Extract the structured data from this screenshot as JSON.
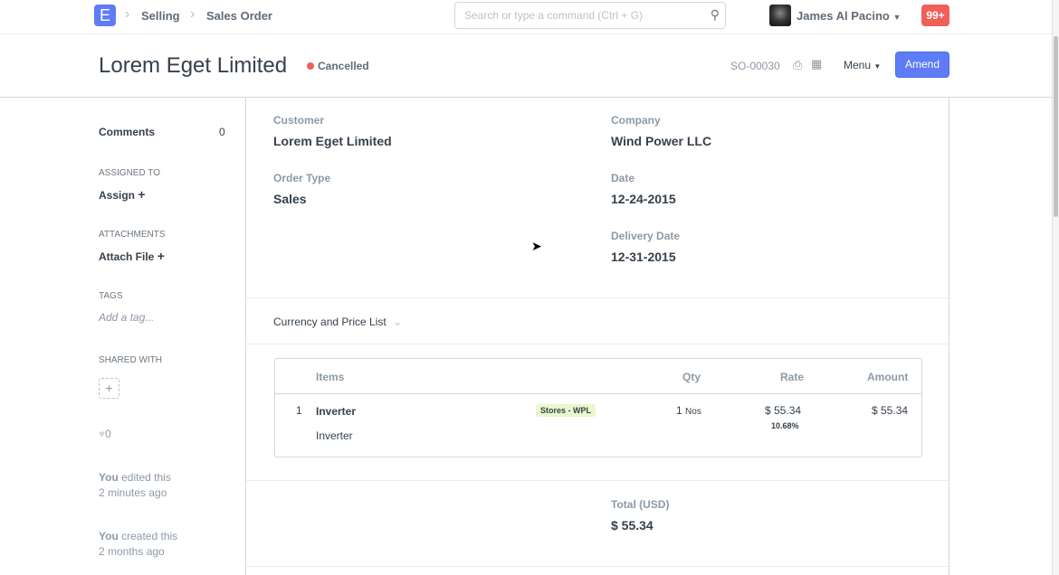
{
  "topbar": {
    "logo": "E",
    "breadcrumbs": [
      "Selling",
      "Sales Order"
    ],
    "search_placeholder": "Search or type a command (Ctrl + G)",
    "user": "James Al Pacino",
    "notifications": "99+"
  },
  "header": {
    "title": "Lorem Eget Limited",
    "status": "Cancelled",
    "status_color": "#f0605a",
    "doc_no": "SO-00030",
    "menu": "Menu",
    "amend": "Amend"
  },
  "sidebar": {
    "comments": "Comments",
    "comments_count": "0",
    "assigned_to": "ASSIGNED TO",
    "assign": "Assign",
    "attachments": "ATTACHMENTS",
    "attach": "Attach File",
    "tags": "TAGS",
    "add_tag": "Add a tag...",
    "shared_with": "SHARED WITH",
    "likes": "0",
    "activity": [
      {
        "who": "You",
        "what": "edited this",
        "when": "2 minutes ago"
      },
      {
        "who": "You",
        "what": "created this",
        "when": "2 months ago"
      }
    ]
  },
  "form": {
    "customer_label": "Customer",
    "customer": "Lorem Eget Limited",
    "company_label": "Company",
    "company": "Wind Power LLC",
    "order_type_label": "Order Type",
    "order_type": "Sales",
    "date_label": "Date",
    "date": "12-24-2015",
    "delivery_label": "Delivery Date",
    "delivery": "12-31-2015",
    "section": "Currency and Price List"
  },
  "items": {
    "headers": [
      "Items",
      "Qty",
      "Rate",
      "Amount"
    ],
    "rows": [
      {
        "idx": "1",
        "item": "Inverter",
        "desc": "Inverter",
        "warehouse": "Stores - WPL",
        "qty": "1",
        "uom": "Nos",
        "rate": "$ 55.34",
        "discount": "10.68%",
        "amount": "$ 55.34"
      }
    ]
  },
  "totals": {
    "label": "Total (USD)",
    "value": "$ 55.34"
  }
}
